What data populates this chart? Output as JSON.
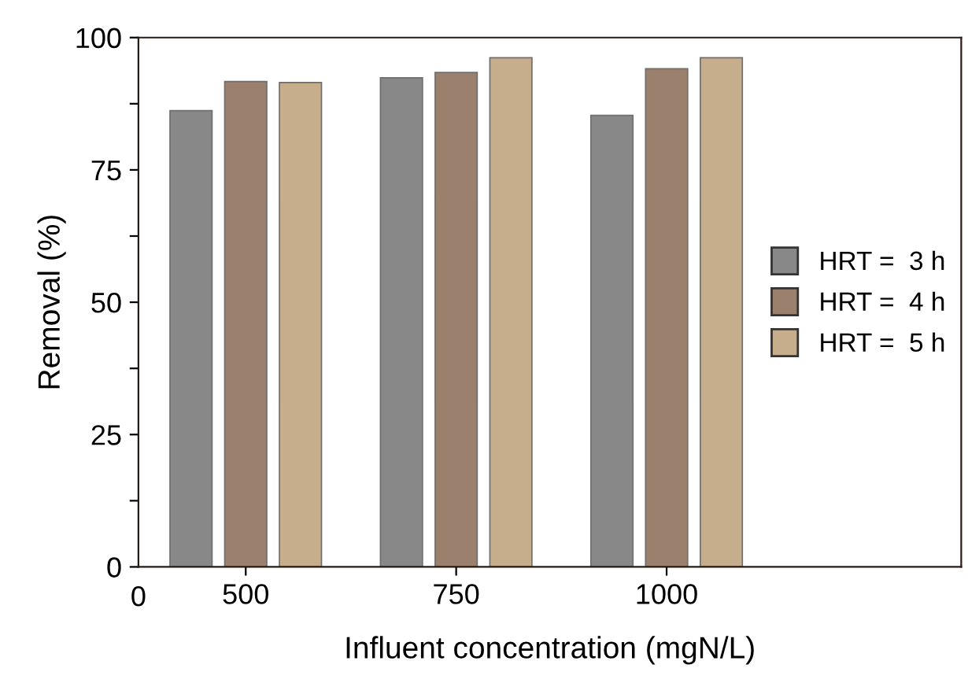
{
  "chart_data": {
    "type": "bar",
    "xlabel": "Influent concentration (mgN/L)",
    "ylabel": "Removal (%)",
    "categories": [
      "500",
      "750",
      "1000"
    ],
    "series": [
      {
        "name": "HRT =  3 h",
        "color": "#888888",
        "values": [
          86.2,
          92.4,
          85.3
        ]
      },
      {
        "name": "HRT =  4 h",
        "color": "#9c806e",
        "values": [
          91.7,
          93.4,
          94.1
        ]
      },
      {
        "name": "HRT =  5 h",
        "color": "#c6ad8b",
        "values": [
          91.5,
          96.2,
          96.2
        ]
      }
    ],
    "ylim": [
      0,
      100
    ],
    "yticks": [
      0,
      {
        "value": 12.5,
        "label": null
      },
      25,
      {
        "value": 37.5,
        "label": null
      },
      50,
      {
        "value": 62.5,
        "label": null
      },
      75,
      {
        "value": 87.5,
        "label": null
      },
      100
    ],
    "annotations": [
      "0"
    ],
    "legend": "right",
    "grid": false
  }
}
